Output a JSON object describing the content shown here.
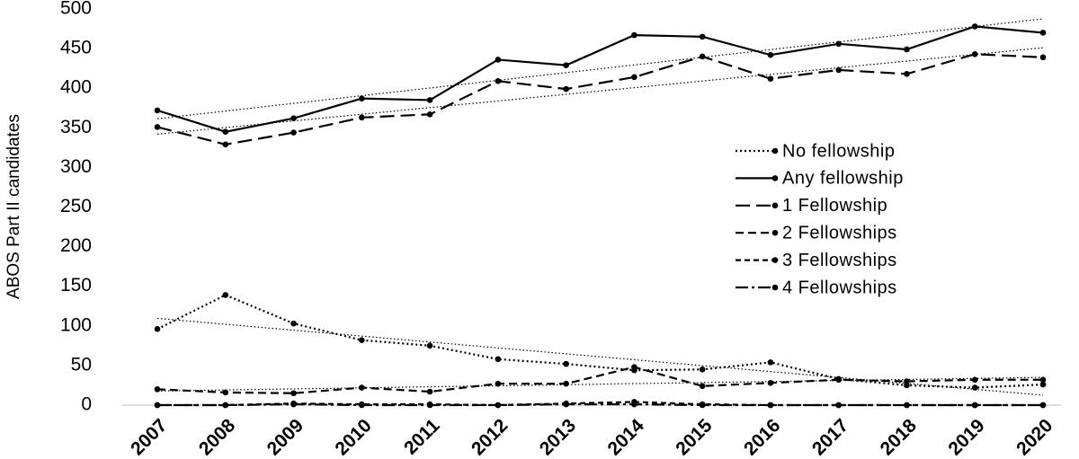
{
  "chart_data": {
    "type": "line",
    "y_label": "ABOS Part II candidates",
    "categories": [
      "2007",
      "2008",
      "2009",
      "2010",
      "2011",
      "2012",
      "2013",
      "2014",
      "2015",
      "2016",
      "2017",
      "2018",
      "2019",
      "2020"
    ],
    "series": [
      {
        "name": "No fellowship",
        "color": "#000000",
        "dash": "2,3",
        "trendline": true,
        "values": [
          96,
          139,
          103,
          82,
          75,
          58,
          52,
          44,
          45,
          54,
          33,
          25,
          22,
          26
        ]
      },
      {
        "name": "Any fellowship",
        "color": "#000000",
        "dash": "none",
        "trendline": true,
        "values": [
          372,
          345,
          362,
          387,
          385,
          436,
          429,
          467,
          465,
          442,
          456,
          449,
          478,
          470
        ]
      },
      {
        "name": "1 Fellowship",
        "color": "#000000",
        "dash": "16,7",
        "trendline": true,
        "values": [
          351,
          329,
          344,
          363,
          367,
          409,
          399,
          414,
          440,
          412,
          423,
          418,
          443,
          439
        ]
      },
      {
        "name": "2 Fellowships",
        "color": "#000000",
        "dash": "9,5",
        "trendline": true,
        "values": [
          20,
          16,
          15,
          22,
          17,
          27,
          27,
          48,
          24,
          28,
          32,
          30,
          32,
          32
        ]
      },
      {
        "name": "3 Fellowships",
        "color": "#000000",
        "dash": "6,4",
        "trendline": false,
        "values": [
          0,
          0,
          2,
          1,
          1,
          0,
          2,
          4,
          1,
          0,
          0,
          0,
          0,
          0
        ]
      },
      {
        "name": "4 Fellowships",
        "color": "#000000",
        "dash": "14,4,3,4",
        "trendline": false,
        "values": [
          0,
          0,
          1,
          0,
          0,
          0,
          1,
          1,
          0,
          0,
          0,
          0,
          0,
          0
        ]
      }
    ],
    "ylim": [
      0,
      500
    ],
    "yticks": [
      0,
      50,
      100,
      150,
      200,
      250,
      300,
      350,
      400,
      450,
      500
    ],
    "grid": false,
    "legend_position": "right"
  }
}
